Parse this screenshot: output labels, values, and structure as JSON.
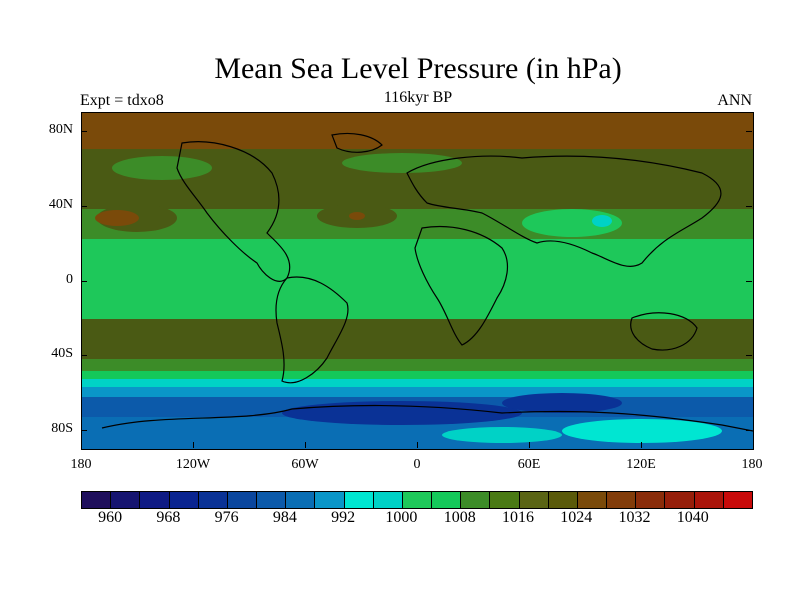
{
  "title": "Mean Sea Level Pressure (in hPa)",
  "subtitle": "116kyr BP",
  "left_label": "Expt = tdxo8",
  "right_label": "ANN",
  "lat_labels": [
    "80N",
    "40N",
    "0",
    "40S",
    "80S"
  ],
  "lon_labels": [
    "180",
    "120W",
    "60W",
    "0",
    "60E",
    "120E",
    "180"
  ],
  "colorbar": {
    "colors": [
      "#1e0e5c",
      "#161470",
      "#0e1a84",
      "#0a2490",
      "#0a3296",
      "#0a469e",
      "#0c5aaa",
      "#0a6eb4",
      "#0a96c8",
      "#00e6d2",
      "#00d2c6",
      "#1ec85a",
      "#14c85a",
      "#3c8c28",
      "#4a7a14",
      "#5a6414",
      "#5a5a0a",
      "#7a4a0a",
      "#823c0a",
      "#8a2c0a",
      "#961e0a",
      "#aa140a",
      "#c80a0a"
    ],
    "labels": [
      "960",
      "968",
      "976",
      "984",
      "992",
      "1000",
      "1008",
      "1016",
      "1024",
      "1032",
      "1040"
    ],
    "unit": "hPa"
  },
  "map": {
    "field": "Mean Sea Level Pressure",
    "period": "116kyr BP",
    "season": "ANN"
  }
}
